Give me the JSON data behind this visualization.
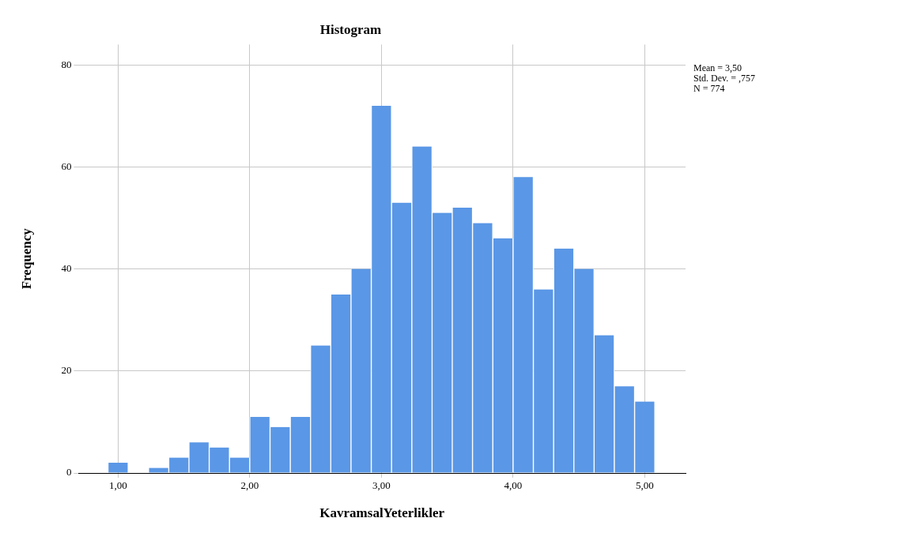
{
  "chart_data": {
    "type": "histogram",
    "title": "Histogram",
    "xlabel": "KavramsalYeterlikler",
    "ylabel": "Frequency",
    "bins": [
      0.923,
      1.077,
      1.231,
      1.385,
      1.538,
      1.692,
      1.846,
      2.0,
      2.154,
      2.308,
      2.462,
      2.615,
      2.769,
      2.923,
      3.077,
      3.231,
      3.385,
      3.538,
      3.692,
      3.846,
      4.0,
      4.154,
      4.308,
      4.462,
      4.615,
      4.769,
      4.923,
      5.077
    ],
    "values": [
      2,
      0,
      1,
      3,
      6,
      5,
      3,
      11,
      9,
      11,
      25,
      35,
      40,
      72,
      53,
      64,
      51,
      52,
      49,
      46,
      58,
      36,
      44,
      40,
      27,
      17,
      14
    ],
    "color": "#5a97e6",
    "xlim": [
      0.7,
      5.31
    ],
    "xticks": [
      {
        "value": 1,
        "label": "1,00"
      },
      {
        "value": 2,
        "label": "2,00"
      },
      {
        "value": 3,
        "label": "3,00"
      },
      {
        "value": 4,
        "label": "4,00"
      },
      {
        "value": 5,
        "label": "5,00"
      }
    ],
    "ylim": [
      0,
      84
    ],
    "yticks": [
      0,
      20,
      40,
      60,
      80
    ],
    "grid": true,
    "annotations": [
      "Mean = 3,50",
      "Std. Dev. = ,757",
      "N = 774"
    ]
  }
}
